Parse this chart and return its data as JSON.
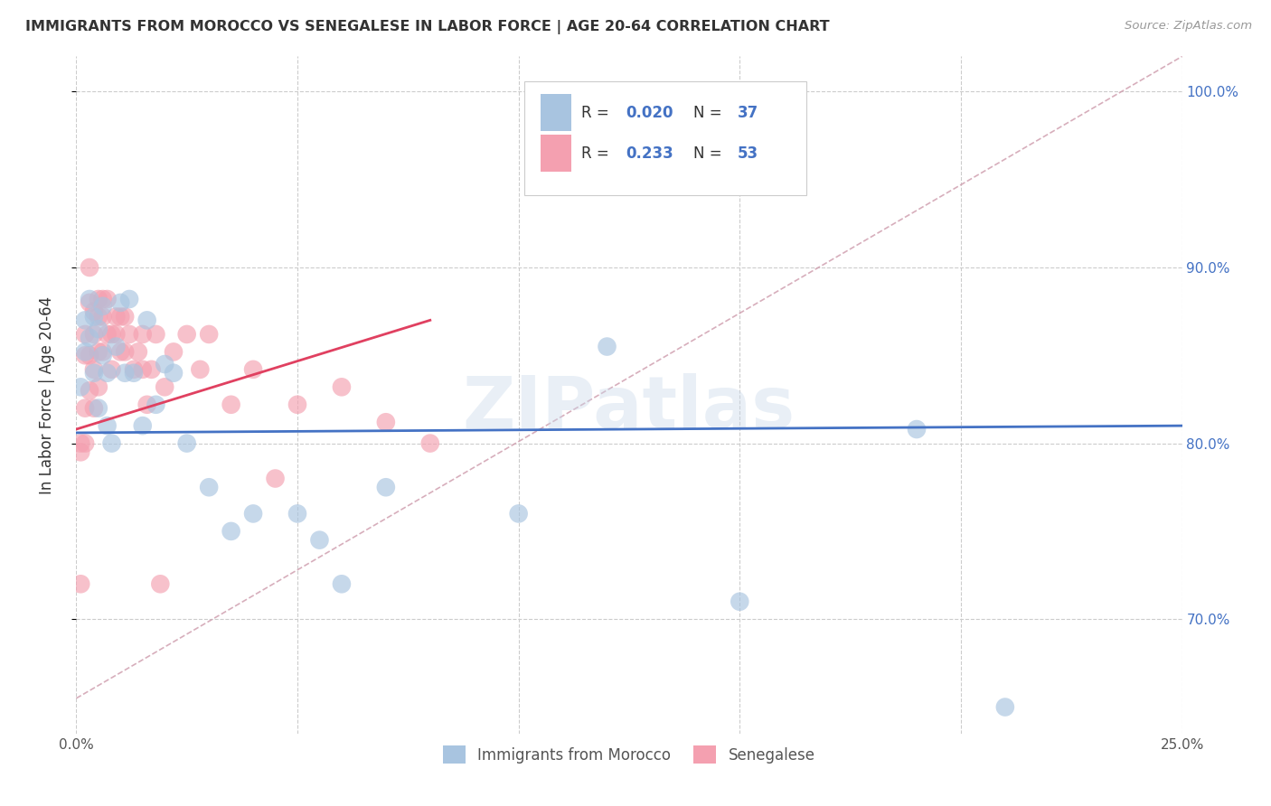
{
  "title": "IMMIGRANTS FROM MOROCCO VS SENEGALESE IN LABOR FORCE | AGE 20-64 CORRELATION CHART",
  "source": "Source: ZipAtlas.com",
  "ylabel": "In Labor Force | Age 20-64",
  "xlim": [
    0.0,
    0.25
  ],
  "ylim": [
    0.635,
    1.02
  ],
  "yticks": [
    0.7,
    0.8,
    0.9,
    1.0
  ],
  "color_morocco": "#a8c4e0",
  "color_senegal": "#f4a0b0",
  "color_morocco_line": "#4472c4",
  "color_senegal_line": "#e04060",
  "color_diag_line": "#d0a0b0",
  "watermark": "ZIPatlas",
  "morocco_x": [
    0.001,
    0.002,
    0.002,
    0.003,
    0.003,
    0.004,
    0.004,
    0.005,
    0.005,
    0.006,
    0.006,
    0.007,
    0.007,
    0.008,
    0.009,
    0.01,
    0.011,
    0.012,
    0.013,
    0.015,
    0.016,
    0.018,
    0.02,
    0.022,
    0.025,
    0.03,
    0.035,
    0.04,
    0.05,
    0.055,
    0.06,
    0.07,
    0.1,
    0.12,
    0.15,
    0.19,
    0.21
  ],
  "morocco_y": [
    0.832,
    0.87,
    0.852,
    0.882,
    0.86,
    0.872,
    0.84,
    0.865,
    0.82,
    0.878,
    0.85,
    0.84,
    0.81,
    0.8,
    0.855,
    0.88,
    0.84,
    0.882,
    0.84,
    0.81,
    0.87,
    0.822,
    0.845,
    0.84,
    0.8,
    0.775,
    0.75,
    0.76,
    0.76,
    0.745,
    0.72,
    0.775,
    0.76,
    0.855,
    0.71,
    0.808,
    0.65
  ],
  "senegal_x": [
    0.001,
    0.001,
    0.001,
    0.002,
    0.002,
    0.002,
    0.002,
    0.003,
    0.003,
    0.003,
    0.003,
    0.004,
    0.004,
    0.004,
    0.004,
    0.005,
    0.005,
    0.005,
    0.005,
    0.006,
    0.006,
    0.006,
    0.007,
    0.007,
    0.008,
    0.008,
    0.009,
    0.009,
    0.01,
    0.01,
    0.011,
    0.011,
    0.012,
    0.013,
    0.014,
    0.015,
    0.015,
    0.016,
    0.017,
    0.018,
    0.019,
    0.02,
    0.022,
    0.025,
    0.028,
    0.03,
    0.035,
    0.04,
    0.045,
    0.05,
    0.06,
    0.07,
    0.08
  ],
  "senegal_y": [
    0.72,
    0.795,
    0.8,
    0.862,
    0.85,
    0.82,
    0.8,
    0.9,
    0.88,
    0.85,
    0.83,
    0.875,
    0.862,
    0.842,
    0.82,
    0.882,
    0.872,
    0.852,
    0.832,
    0.882,
    0.872,
    0.852,
    0.882,
    0.862,
    0.862,
    0.842,
    0.872,
    0.862,
    0.872,
    0.852,
    0.872,
    0.852,
    0.862,
    0.842,
    0.852,
    0.862,
    0.842,
    0.822,
    0.842,
    0.862,
    0.72,
    0.832,
    0.852,
    0.862,
    0.842,
    0.862,
    0.822,
    0.842,
    0.78,
    0.822,
    0.832,
    0.812,
    0.8
  ]
}
